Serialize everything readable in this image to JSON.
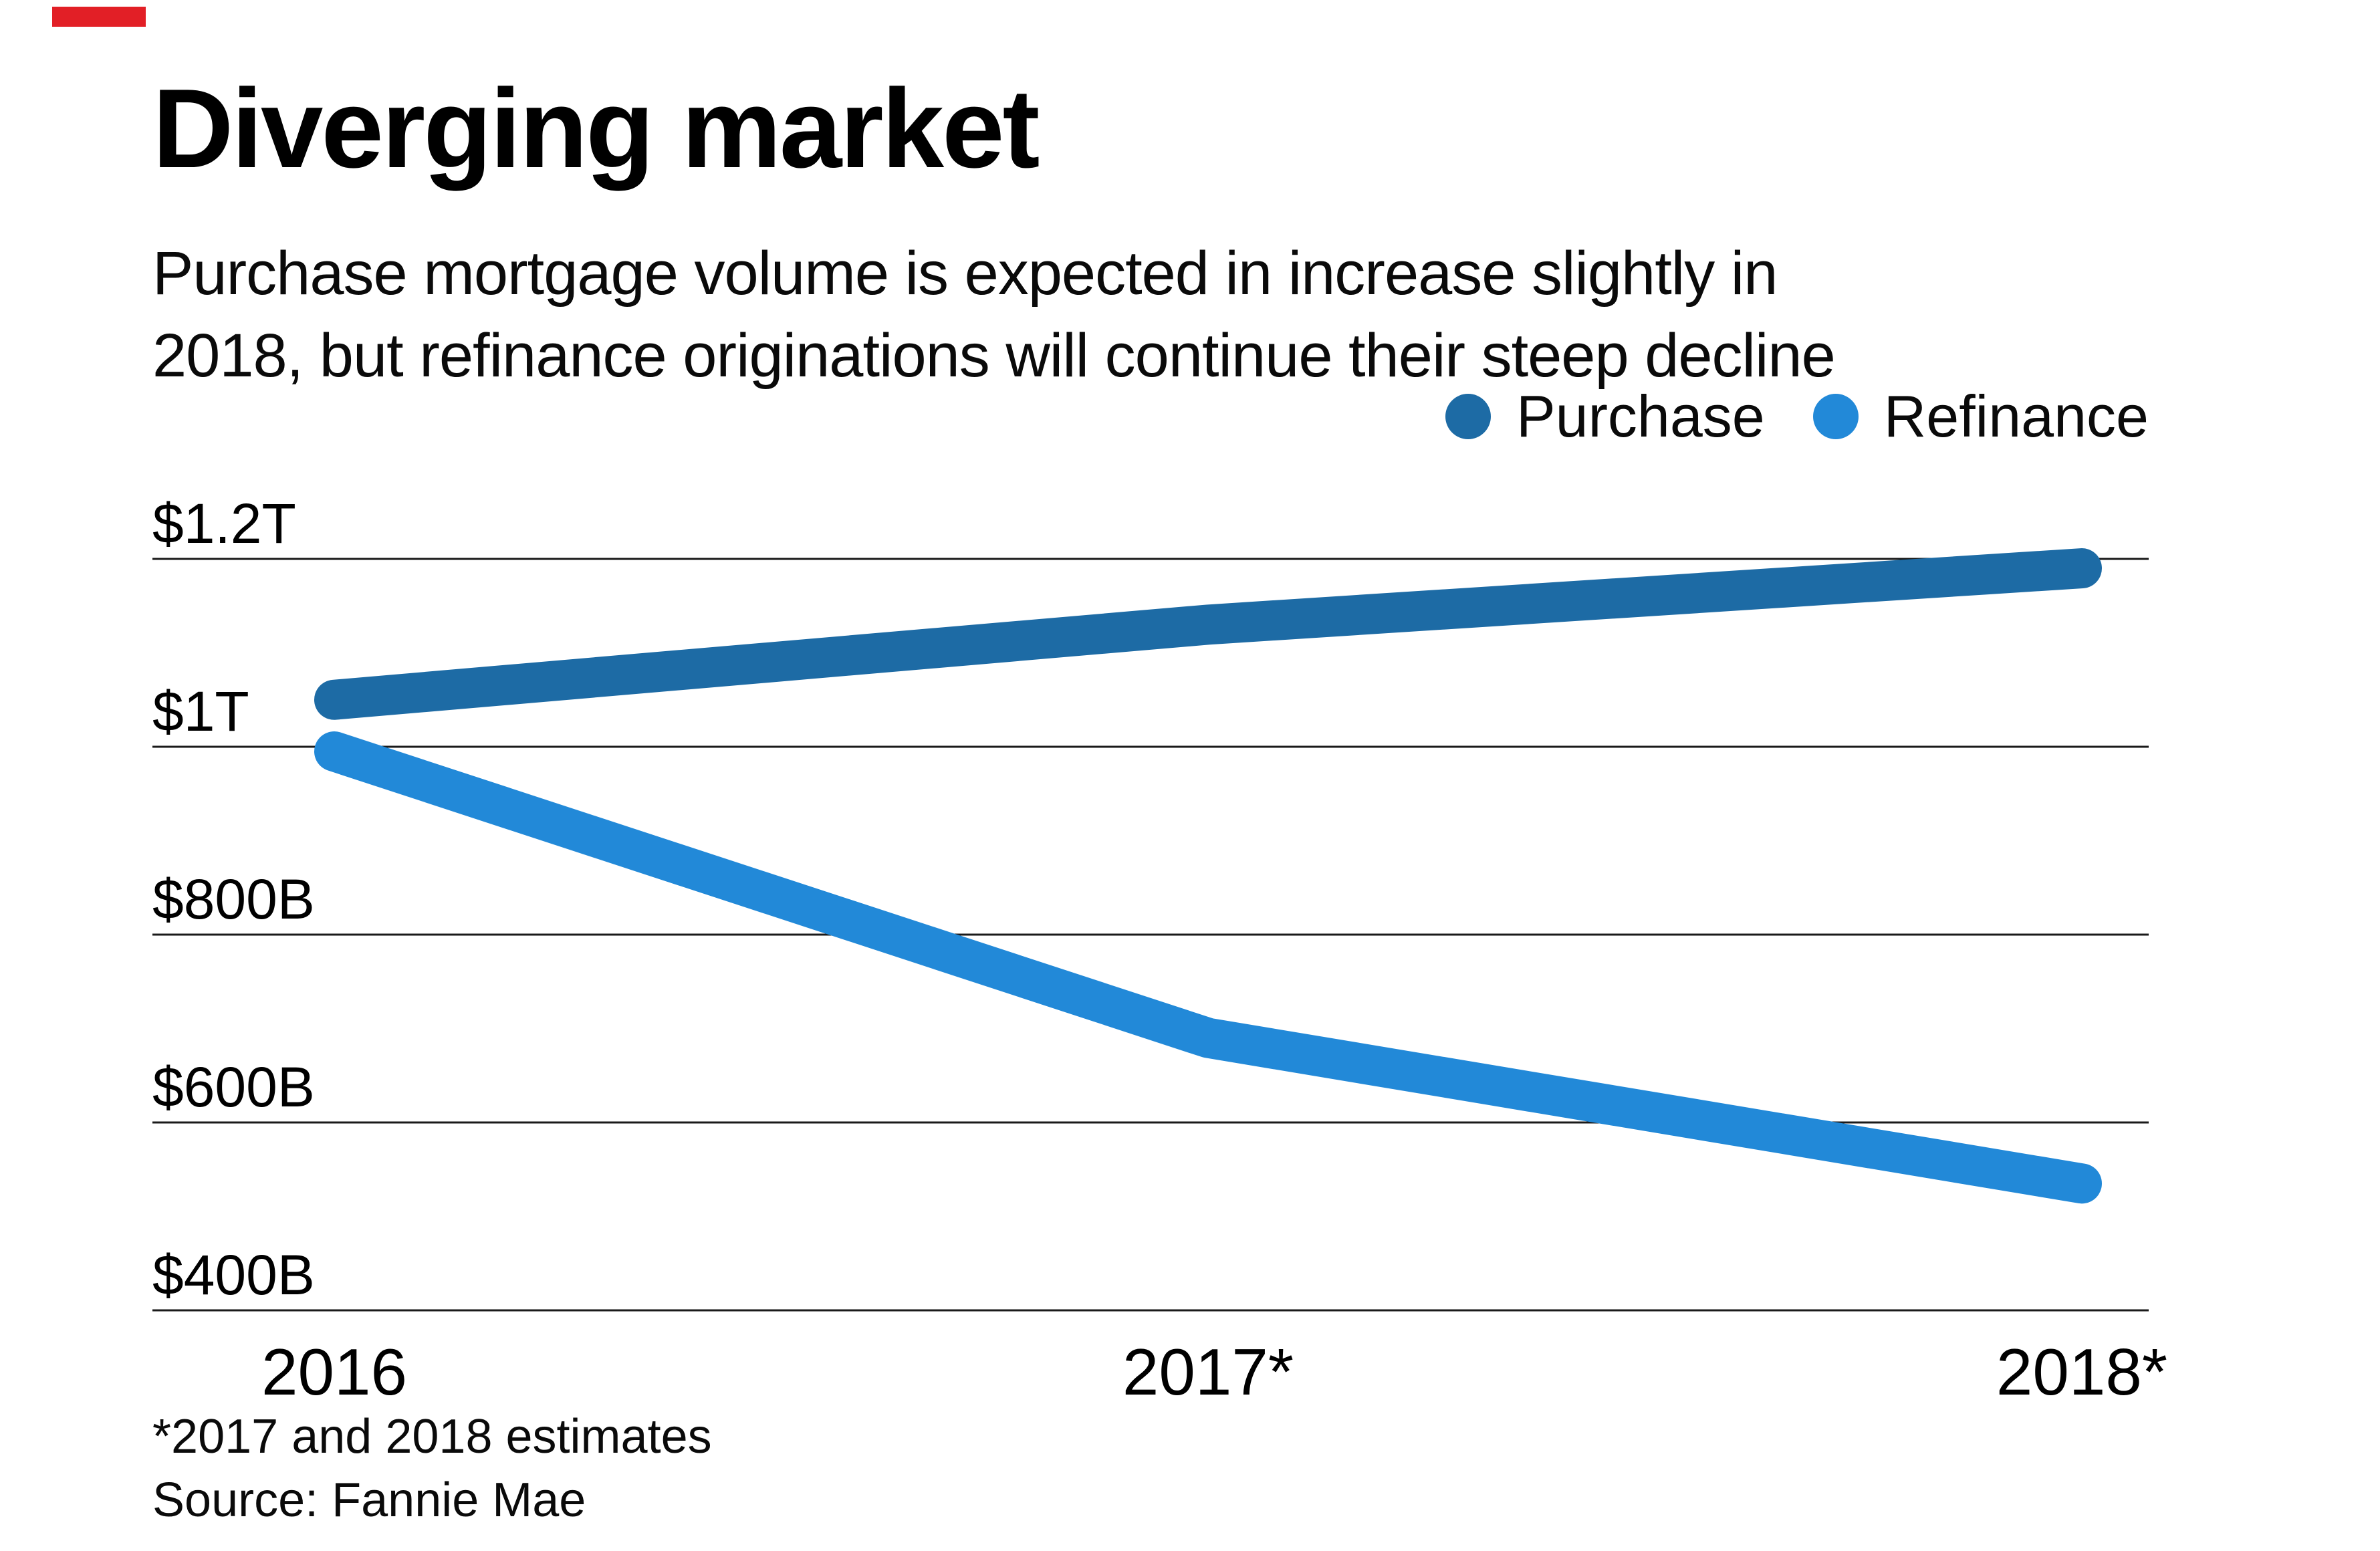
{
  "page": {
    "title": "Diverging market",
    "subtitle_line1": "Purchase mortgage volume is expected in increase slightly in",
    "subtitle_line2": "2018, but refinance originations will continue their steep decline",
    "footnote": "*2017 and 2018 estimates",
    "source": "Source: Fannie Mae",
    "accent_color": "#e21f26"
  },
  "chart_data": {
    "type": "line",
    "title": "Diverging market",
    "categories": [
      "2016",
      "2017*",
      "2018*"
    ],
    "series": [
      {
        "name": "Purchase",
        "color": "#1d6ba5",
        "values": [
          1050,
          1130,
          1190
        ]
      },
      {
        "name": "Refinance",
        "color": "#2289d8",
        "values": [
          995,
          690,
          535
        ]
      }
    ],
    "units": "billions of dollars",
    "y_ticks": [
      {
        "label": "$1.2T",
        "value": 1200
      },
      {
        "label": "$1T",
        "value": 1000
      },
      {
        "label": "$800B",
        "value": 800
      },
      {
        "label": "$600B",
        "value": 600
      },
      {
        "label": "$400B",
        "value": 400
      }
    ],
    "ylim": [
      400,
      1200
    ],
    "xlabel": "",
    "ylabel": "",
    "grid": true,
    "grid_color": "#1a1a1a",
    "legend_position": "top-right",
    "source": "Fannie Mae"
  }
}
